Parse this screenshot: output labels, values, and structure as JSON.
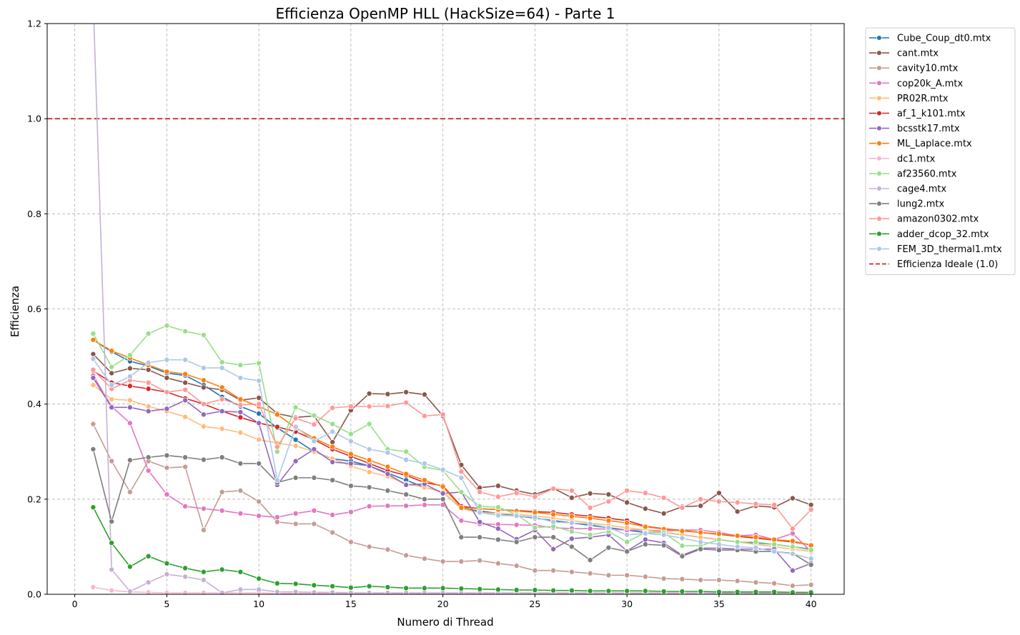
{
  "chart_data": {
    "type": "line",
    "title": "Efficienza OpenMP HLL (HackSize=64) - Parte 1",
    "xlabel": "Numero di Thread",
    "ylabel": "Efficienza",
    "xlim": [
      -1.5,
      41.8
    ],
    "ylim": [
      0,
      1.2
    ],
    "xticks": [
      0,
      5,
      10,
      15,
      20,
      25,
      30,
      35,
      40
    ],
    "yticks": [
      0.0,
      0.2,
      0.4,
      0.6,
      0.8,
      1.0,
      1.2
    ],
    "xtick_labels": [
      "0",
      "5",
      "10",
      "15",
      "20",
      "25",
      "30",
      "35",
      "40"
    ],
    "ytick_labels": [
      "0.0",
      "0.2",
      "0.4",
      "0.6",
      "0.8",
      "1.0",
      "1.2"
    ],
    "grid": true,
    "legend_position": "outside-top-right",
    "reference_line": {
      "name": "Efficienza Ideale (1.0)",
      "y": 1.0,
      "color": "#d62728",
      "style": "dashed"
    },
    "x": [
      1,
      2,
      3,
      4,
      5,
      6,
      7,
      8,
      9,
      10,
      11,
      12,
      13,
      14,
      15,
      16,
      17,
      18,
      19,
      20,
      21,
      22,
      23,
      24,
      25,
      26,
      27,
      28,
      29,
      30,
      31,
      32,
      33,
      34,
      35,
      36,
      37,
      38,
      39,
      40
    ],
    "series": [
      {
        "name": "Cube_Coup_dt0.mtx",
        "color": "#1f77b4",
        "values": [
          0.535,
          0.51,
          0.49,
          0.48,
          0.465,
          0.46,
          0.44,
          0.415,
          0.395,
          0.38,
          0.35,
          0.325,
          0.3,
          0.285,
          0.28,
          0.27,
          0.255,
          0.24,
          0.225,
          0.215,
          0.18,
          0.175,
          0.17,
          0.165,
          0.16,
          0.155,
          0.15,
          0.145,
          0.14,
          0.135,
          0.13,
          0.13,
          0.125,
          0.12,
          0.115,
          0.11,
          0.108,
          0.105,
          0.1,
          0.095
        ]
      },
      {
        "name": "cant.mtx",
        "color": "#8c564b",
        "values": [
          0.505,
          0.465,
          0.475,
          0.472,
          0.455,
          0.445,
          0.435,
          0.43,
          0.408,
          0.413,
          0.38,
          0.372,
          0.375,
          0.32,
          0.387,
          0.422,
          0.421,
          0.425,
          0.42,
          0.375,
          0.272,
          0.224,
          0.228,
          0.218,
          0.21,
          0.223,
          0.203,
          0.212,
          0.21,
          0.193,
          0.18,
          0.17,
          0.184,
          0.186,
          0.213,
          0.174,
          0.186,
          0.183,
          0.202,
          0.188
        ]
      },
      {
        "name": "cavity10.mtx",
        "color": "#c49c94",
        "values": [
          0.358,
          0.28,
          0.215,
          0.28,
          0.266,
          0.268,
          0.135,
          0.215,
          0.218,
          0.195,
          0.152,
          0.148,
          0.148,
          0.13,
          0.11,
          0.1,
          0.094,
          0.082,
          0.075,
          0.069,
          0.069,
          0.071,
          0.065,
          0.06,
          0.05,
          0.05,
          0.047,
          0.044,
          0.04,
          0.04,
          0.037,
          0.033,
          0.032,
          0.03,
          0.03,
          0.028,
          0.025,
          0.023,
          0.018,
          0.02
        ]
      },
      {
        "name": "cop20k_A.mtx",
        "color": "#e377c2",
        "values": [
          0.46,
          0.395,
          0.36,
          0.26,
          0.21,
          0.185,
          0.18,
          0.176,
          0.17,
          0.165,
          0.162,
          0.17,
          0.176,
          0.167,
          0.173,
          0.185,
          0.186,
          0.186,
          0.188,
          0.188,
          0.155,
          0.148,
          0.147,
          0.146,
          0.145,
          0.14,
          0.138,
          0.138,
          0.137,
          0.135,
          0.135,
          0.133,
          0.135,
          0.135,
          0.13,
          0.123,
          0.125,
          0.115,
          0.128,
          0.09
        ]
      },
      {
        "name": "PR02R.mtx",
        "color": "#ffbb78",
        "values": [
          0.44,
          0.41,
          0.408,
          0.395,
          0.385,
          0.373,
          0.353,
          0.348,
          0.34,
          0.325,
          0.318,
          0.312,
          0.3,
          0.285,
          0.27,
          0.257,
          0.248,
          0.232,
          0.225,
          0.215,
          0.18,
          0.172,
          0.17,
          0.168,
          0.165,
          0.16,
          0.155,
          0.15,
          0.145,
          0.14,
          0.135,
          0.13,
          0.125,
          0.12,
          0.115,
          0.11,
          0.105,
          0.1,
          0.095,
          0.09
        ]
      },
      {
        "name": "af_1_k101.mtx",
        "color": "#d62728",
        "values": [
          0.47,
          0.445,
          0.438,
          0.432,
          0.425,
          0.412,
          0.4,
          0.385,
          0.372,
          0.36,
          0.352,
          0.342,
          0.325,
          0.305,
          0.29,
          0.275,
          0.26,
          0.25,
          0.235,
          0.228,
          0.185,
          0.18,
          0.178,
          0.176,
          0.174,
          0.172,
          0.168,
          0.164,
          0.16,
          0.155,
          0.143,
          0.138,
          0.134,
          0.13,
          0.126,
          0.122,
          0.118,
          0.114,
          0.11,
          0.104
        ]
      },
      {
        "name": "bcsstk17.mtx",
        "color": "#9467bd",
        "values": [
          0.455,
          0.393,
          0.393,
          0.385,
          0.39,
          0.408,
          0.378,
          0.385,
          0.383,
          0.36,
          0.23,
          0.28,
          0.305,
          0.278,
          0.275,
          0.27,
          0.253,
          0.23,
          0.232,
          0.212,
          0.215,
          0.152,
          0.138,
          0.116,
          0.135,
          0.095,
          0.117,
          0.12,
          0.125,
          0.091,
          0.115,
          0.108,
          0.082,
          0.097,
          0.097,
          0.095,
          0.095,
          0.095,
          0.05,
          0.065
        ]
      },
      {
        "name": "ML_Laplace.mtx",
        "color": "#ff7f0e",
        "values": [
          0.535,
          0.512,
          0.497,
          0.482,
          0.468,
          0.463,
          0.45,
          0.435,
          0.41,
          0.395,
          0.378,
          0.35,
          0.328,
          0.31,
          0.295,
          0.282,
          0.268,
          0.253,
          0.24,
          0.226,
          0.182,
          0.18,
          0.178,
          0.175,
          0.172,
          0.168,
          0.164,
          0.16,
          0.155,
          0.15,
          0.142,
          0.137,
          0.133,
          0.13,
          0.127,
          0.123,
          0.12,
          0.115,
          0.112,
          0.103
        ]
      },
      {
        "name": "dc1.mtx",
        "color": "#f7b6d2",
        "values": [
          0.015,
          0.008,
          0.005,
          0.004,
          0.003,
          0.003,
          0.003,
          0.003,
          0.003,
          0.003,
          0.002,
          0.002,
          0.002,
          0.002,
          0.002,
          0.002,
          0.002,
          0.002,
          0.002,
          0.002,
          0.002,
          0.002,
          0.002,
          0.002,
          0.002,
          0.002,
          0.002,
          0.002,
          0.002,
          0.002,
          0.002,
          0.002,
          0.002,
          0.002,
          0.002,
          0.002,
          0.002,
          0.002,
          0.002,
          0.002
        ]
      },
      {
        "name": "af23560.mtx",
        "color": "#98df8a",
        "values": [
          0.548,
          0.478,
          0.503,
          0.548,
          0.565,
          0.553,
          0.545,
          0.488,
          0.482,
          0.486,
          0.3,
          0.393,
          0.376,
          0.358,
          0.337,
          0.358,
          0.305,
          0.3,
          0.268,
          0.26,
          0.215,
          0.185,
          0.183,
          0.168,
          0.14,
          0.143,
          0.132,
          0.125,
          0.132,
          0.11,
          0.13,
          0.13,
          0.102,
          0.102,
          0.115,
          0.11,
          0.11,
          0.105,
          0.1,
          0.093
        ]
      },
      {
        "name": "cage4.mtx",
        "color": "#c5b0d5",
        "values": [
          1.25,
          0.052,
          0.006,
          0.025,
          0.042,
          0.037,
          0.03,
          0.003,
          0.01,
          0.01,
          0.005,
          0.005,
          0.004,
          0.004,
          0.003,
          0.003,
          0.003,
          0.003,
          0.003,
          0.003,
          0.003,
          0.003,
          0.003,
          0.003,
          0.003,
          0.003,
          0.003,
          0.003,
          0.003,
          0.003,
          0.003,
          0.003,
          0.003,
          0.003,
          0.003,
          0.003,
          0.003,
          0.003,
          0.003,
          0.003
        ]
      },
      {
        "name": "lung2.mtx",
        "color": "#7f7f7f",
        "values": [
          0.305,
          0.153,
          0.282,
          0.288,
          0.292,
          0.288,
          0.283,
          0.288,
          0.275,
          0.275,
          0.235,
          0.245,
          0.245,
          0.24,
          0.228,
          0.225,
          0.218,
          0.21,
          0.2,
          0.2,
          0.12,
          0.12,
          0.115,
          0.11,
          0.12,
          0.12,
          0.1,
          0.072,
          0.098,
          0.09,
          0.105,
          0.103,
          0.08,
          0.095,
          0.093,
          0.093,
          0.09,
          0.09,
          0.086,
          0.062
        ]
      },
      {
        "name": "amazon0302.mtx",
        "color": "#ff9896",
        "values": [
          0.472,
          0.432,
          0.45,
          0.445,
          0.425,
          0.43,
          0.4,
          0.41,
          0.398,
          0.4,
          0.31,
          0.37,
          0.357,
          0.392,
          0.395,
          0.395,
          0.396,
          0.403,
          0.375,
          0.378,
          0.258,
          0.215,
          0.205,
          0.213,
          0.205,
          0.222,
          0.218,
          0.182,
          0.195,
          0.218,
          0.213,
          0.203,
          0.182,
          0.2,
          0.195,
          0.193,
          0.19,
          0.188,
          0.138,
          0.178
        ]
      },
      {
        "name": "adder_dcop_32.mtx",
        "color": "#2ca02c",
        "values": [
          0.183,
          0.108,
          0.058,
          0.08,
          0.065,
          0.055,
          0.047,
          0.052,
          0.047,
          0.033,
          0.023,
          0.022,
          0.019,
          0.017,
          0.014,
          0.017,
          0.015,
          0.013,
          0.013,
          0.013,
          0.012,
          0.011,
          0.01,
          0.009,
          0.009,
          0.008,
          0.008,
          0.007,
          0.007,
          0.007,
          0.007,
          0.006,
          0.006,
          0.006,
          0.005,
          0.005,
          0.005,
          0.005,
          0.004,
          0.004
        ]
      },
      {
        "name": "FEM_3D_thermal1.mtx",
        "color": "#aec7e8",
        "values": [
          0.495,
          0.44,
          0.458,
          0.487,
          0.493,
          0.493,
          0.476,
          0.476,
          0.455,
          0.449,
          0.24,
          0.352,
          0.322,
          0.342,
          0.322,
          0.305,
          0.298,
          0.283,
          0.275,
          0.262,
          0.245,
          0.172,
          0.166,
          0.165,
          0.162,
          0.152,
          0.15,
          0.148,
          0.14,
          0.125,
          0.128,
          0.125,
          0.118,
          0.11,
          0.105,
          0.1,
          0.098,
          0.09,
          0.085,
          0.075
        ]
      }
    ]
  }
}
